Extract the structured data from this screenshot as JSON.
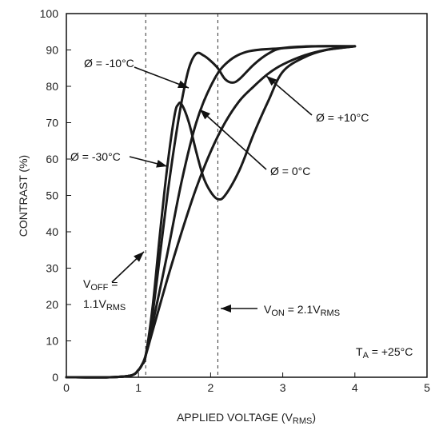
{
  "chart_data": {
    "type": "line",
    "xlabel": {
      "main": "APPLIED VOLTAGE (V",
      "sub": "RMS",
      "tail": ")"
    },
    "ylabel": "CONTRAST (%)",
    "xlim": [
      0,
      5
    ],
    "ylim": [
      0,
      100
    ],
    "xticks": [
      0,
      1,
      2,
      3,
      4,
      5
    ],
    "yticks": [
      0,
      10,
      20,
      30,
      40,
      50,
      60,
      70,
      80,
      90,
      100
    ],
    "grid": false,
    "vlines": [
      1.1,
      2.1
    ],
    "series": [
      {
        "name": "Ø = -30°C",
        "x": [
          0,
          0.6,
          0.9,
          1.0,
          1.05,
          1.1,
          1.2,
          1.3,
          1.4,
          1.5,
          1.55,
          1.6,
          1.7,
          1.8,
          1.9,
          2.0,
          2.1,
          2.2,
          2.4,
          2.6,
          2.8,
          3.0,
          3.3,
          3.6,
          4.0
        ],
        "y": [
          0,
          0,
          0.5,
          2,
          3.5,
          6,
          20,
          40,
          58,
          72,
          75,
          75,
          70,
          62,
          55,
          51,
          49,
          50,
          57,
          67,
          76,
          84,
          88,
          90,
          91
        ]
      },
      {
        "name": "Ø = -10°C",
        "x": [
          0,
          0.6,
          0.9,
          1.0,
          1.05,
          1.1,
          1.2,
          1.3,
          1.4,
          1.5,
          1.6,
          1.7,
          1.8,
          1.9,
          2.0,
          2.1,
          2.2,
          2.3,
          2.4,
          2.6,
          2.8,
          3.0,
          3.4,
          4.0
        ],
        "y": [
          0,
          0,
          0.5,
          2,
          3.5,
          6,
          18,
          34,
          50,
          64,
          76,
          85,
          89,
          88.5,
          87,
          85,
          82,
          81,
          82,
          86,
          89,
          90.5,
          91,
          91
        ]
      },
      {
        "name": "Ø = 0°C",
        "x": [
          0,
          0.6,
          0.9,
          1.0,
          1.05,
          1.1,
          1.2,
          1.4,
          1.6,
          1.8,
          2.0,
          2.2,
          2.5,
          3.0,
          3.5,
          4.0
        ],
        "y": [
          0,
          0,
          0.5,
          2,
          3.5,
          6,
          15,
          34,
          54,
          70,
          80,
          86,
          89.5,
          90.5,
          91,
          91
        ]
      },
      {
        "name": "Ø = +10°C",
        "x": [
          0,
          0.6,
          0.9,
          1.0,
          1.05,
          1.1,
          1.2,
          1.4,
          1.6,
          1.8,
          2.0,
          2.2,
          2.4,
          2.6,
          2.8,
          3.0,
          3.3,
          3.6,
          4.0
        ],
        "y": [
          0,
          0,
          0.5,
          2,
          3.5,
          6,
          13,
          27,
          40,
          52,
          62,
          70,
          76,
          80,
          83.5,
          86,
          88.5,
          90,
          91
        ]
      }
    ],
    "annotations": [
      {
        "id": "m10",
        "text": "Ø = -10°C"
      },
      {
        "id": "p10",
        "text": "Ø = +10°C"
      },
      {
        "id": "m30",
        "text": "Ø = -30°C"
      },
      {
        "id": "z0",
        "text": "Ø = 0°C"
      },
      {
        "id": "voff_a",
        "main": "V",
        "sub": "OFF",
        "tail": " ="
      },
      {
        "id": "voff_b",
        "main": "1.1V",
        "sub": "RMS",
        "tail": ""
      },
      {
        "id": "von",
        "main": "V",
        "sub": "ON",
        "tail": " = 2.1V",
        "sub2": "RMS"
      },
      {
        "id": "ta",
        "main": "T",
        "sub": "A",
        "tail": " = +25°C"
      }
    ]
  }
}
